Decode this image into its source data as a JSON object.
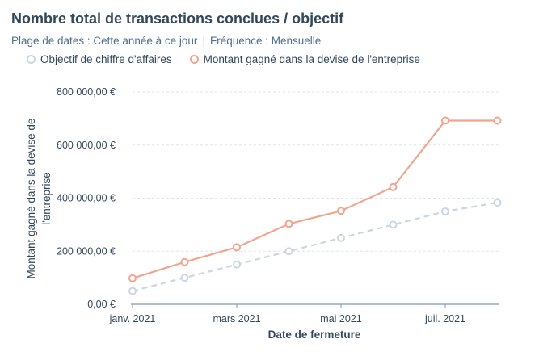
{
  "chart_data": {
    "type": "line",
    "title": "Nombre total de transactions conclues / objectif",
    "filters": {
      "date_range": "Plage de dates : Cette année à ce jour",
      "frequency": "Fréquence : Mensuelle"
    },
    "xlabel": "Date de fermeture",
    "ylabel_line1": "Montant gagné dans la devise de",
    "ylabel_line2": "l'entreprise",
    "x": [
      "2021-01",
      "2021-02",
      "2021-03",
      "2021-04",
      "2021-05",
      "2021-06",
      "2021-07",
      "2021-08"
    ],
    "x_tick_labels": [
      {
        "x": "2021-01",
        "label": "janv. 2021"
      },
      {
        "x": "2021-03",
        "label": "mars 2021"
      },
      {
        "x": "2021-05",
        "label": "mai 2021"
      },
      {
        "x": "2021-07",
        "label": "juil. 2021"
      }
    ],
    "y_ticks": [
      {
        "value": 0,
        "label": "0,00 €"
      },
      {
        "value": 200000,
        "label": "200 000,00 €"
      },
      {
        "value": 400000,
        "label": "400 000,00 €"
      },
      {
        "value": 600000,
        "label": "600 000,00 €"
      },
      {
        "value": 800000,
        "label": "800 000,00 €"
      }
    ],
    "ylim": [
      0,
      800000
    ],
    "grid": true,
    "legend_position": "top-left",
    "series": [
      {
        "name": "Objectif de chiffre d'affaires",
        "color": "#cbd6e2",
        "style": "dashed",
        "values": [
          50000,
          100000,
          150000,
          200000,
          250000,
          300000,
          350000,
          383000
        ]
      },
      {
        "name": "Montant gagné dans la devise de l'entreprise",
        "color": "#f2a58e",
        "style": "solid",
        "values": [
          98000,
          159000,
          215000,
          303000,
          352000,
          442000,
          692000,
          692000
        ]
      }
    ]
  }
}
